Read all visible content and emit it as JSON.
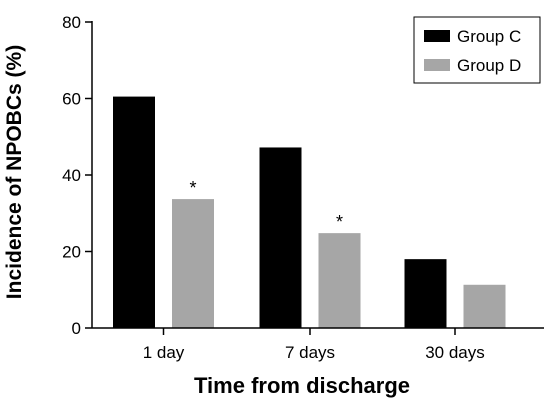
{
  "chart_data": {
    "type": "bar",
    "xlabel": "Time from discharge",
    "ylabel": "Incidence of NPOBCs (%)",
    "categories": [
      "1 day",
      "7 days",
      "30 days"
    ],
    "ylim": [
      0,
      80
    ],
    "yticks": [
      0,
      20,
      40,
      60,
      80
    ],
    "legend_position": "top-right",
    "series": [
      {
        "name": "Group C",
        "color": "#000000",
        "values": [
          60.5,
          47.2,
          18.0
        ]
      },
      {
        "name": "Group D",
        "color": "#a6a6a6",
        "values": [
          33.7,
          24.8,
          11.3
        ]
      }
    ],
    "annotations": [
      {
        "category": "1 day",
        "series": "Group D",
        "text": "*"
      },
      {
        "category": "7 days",
        "series": "Group D",
        "text": "*"
      }
    ]
  }
}
